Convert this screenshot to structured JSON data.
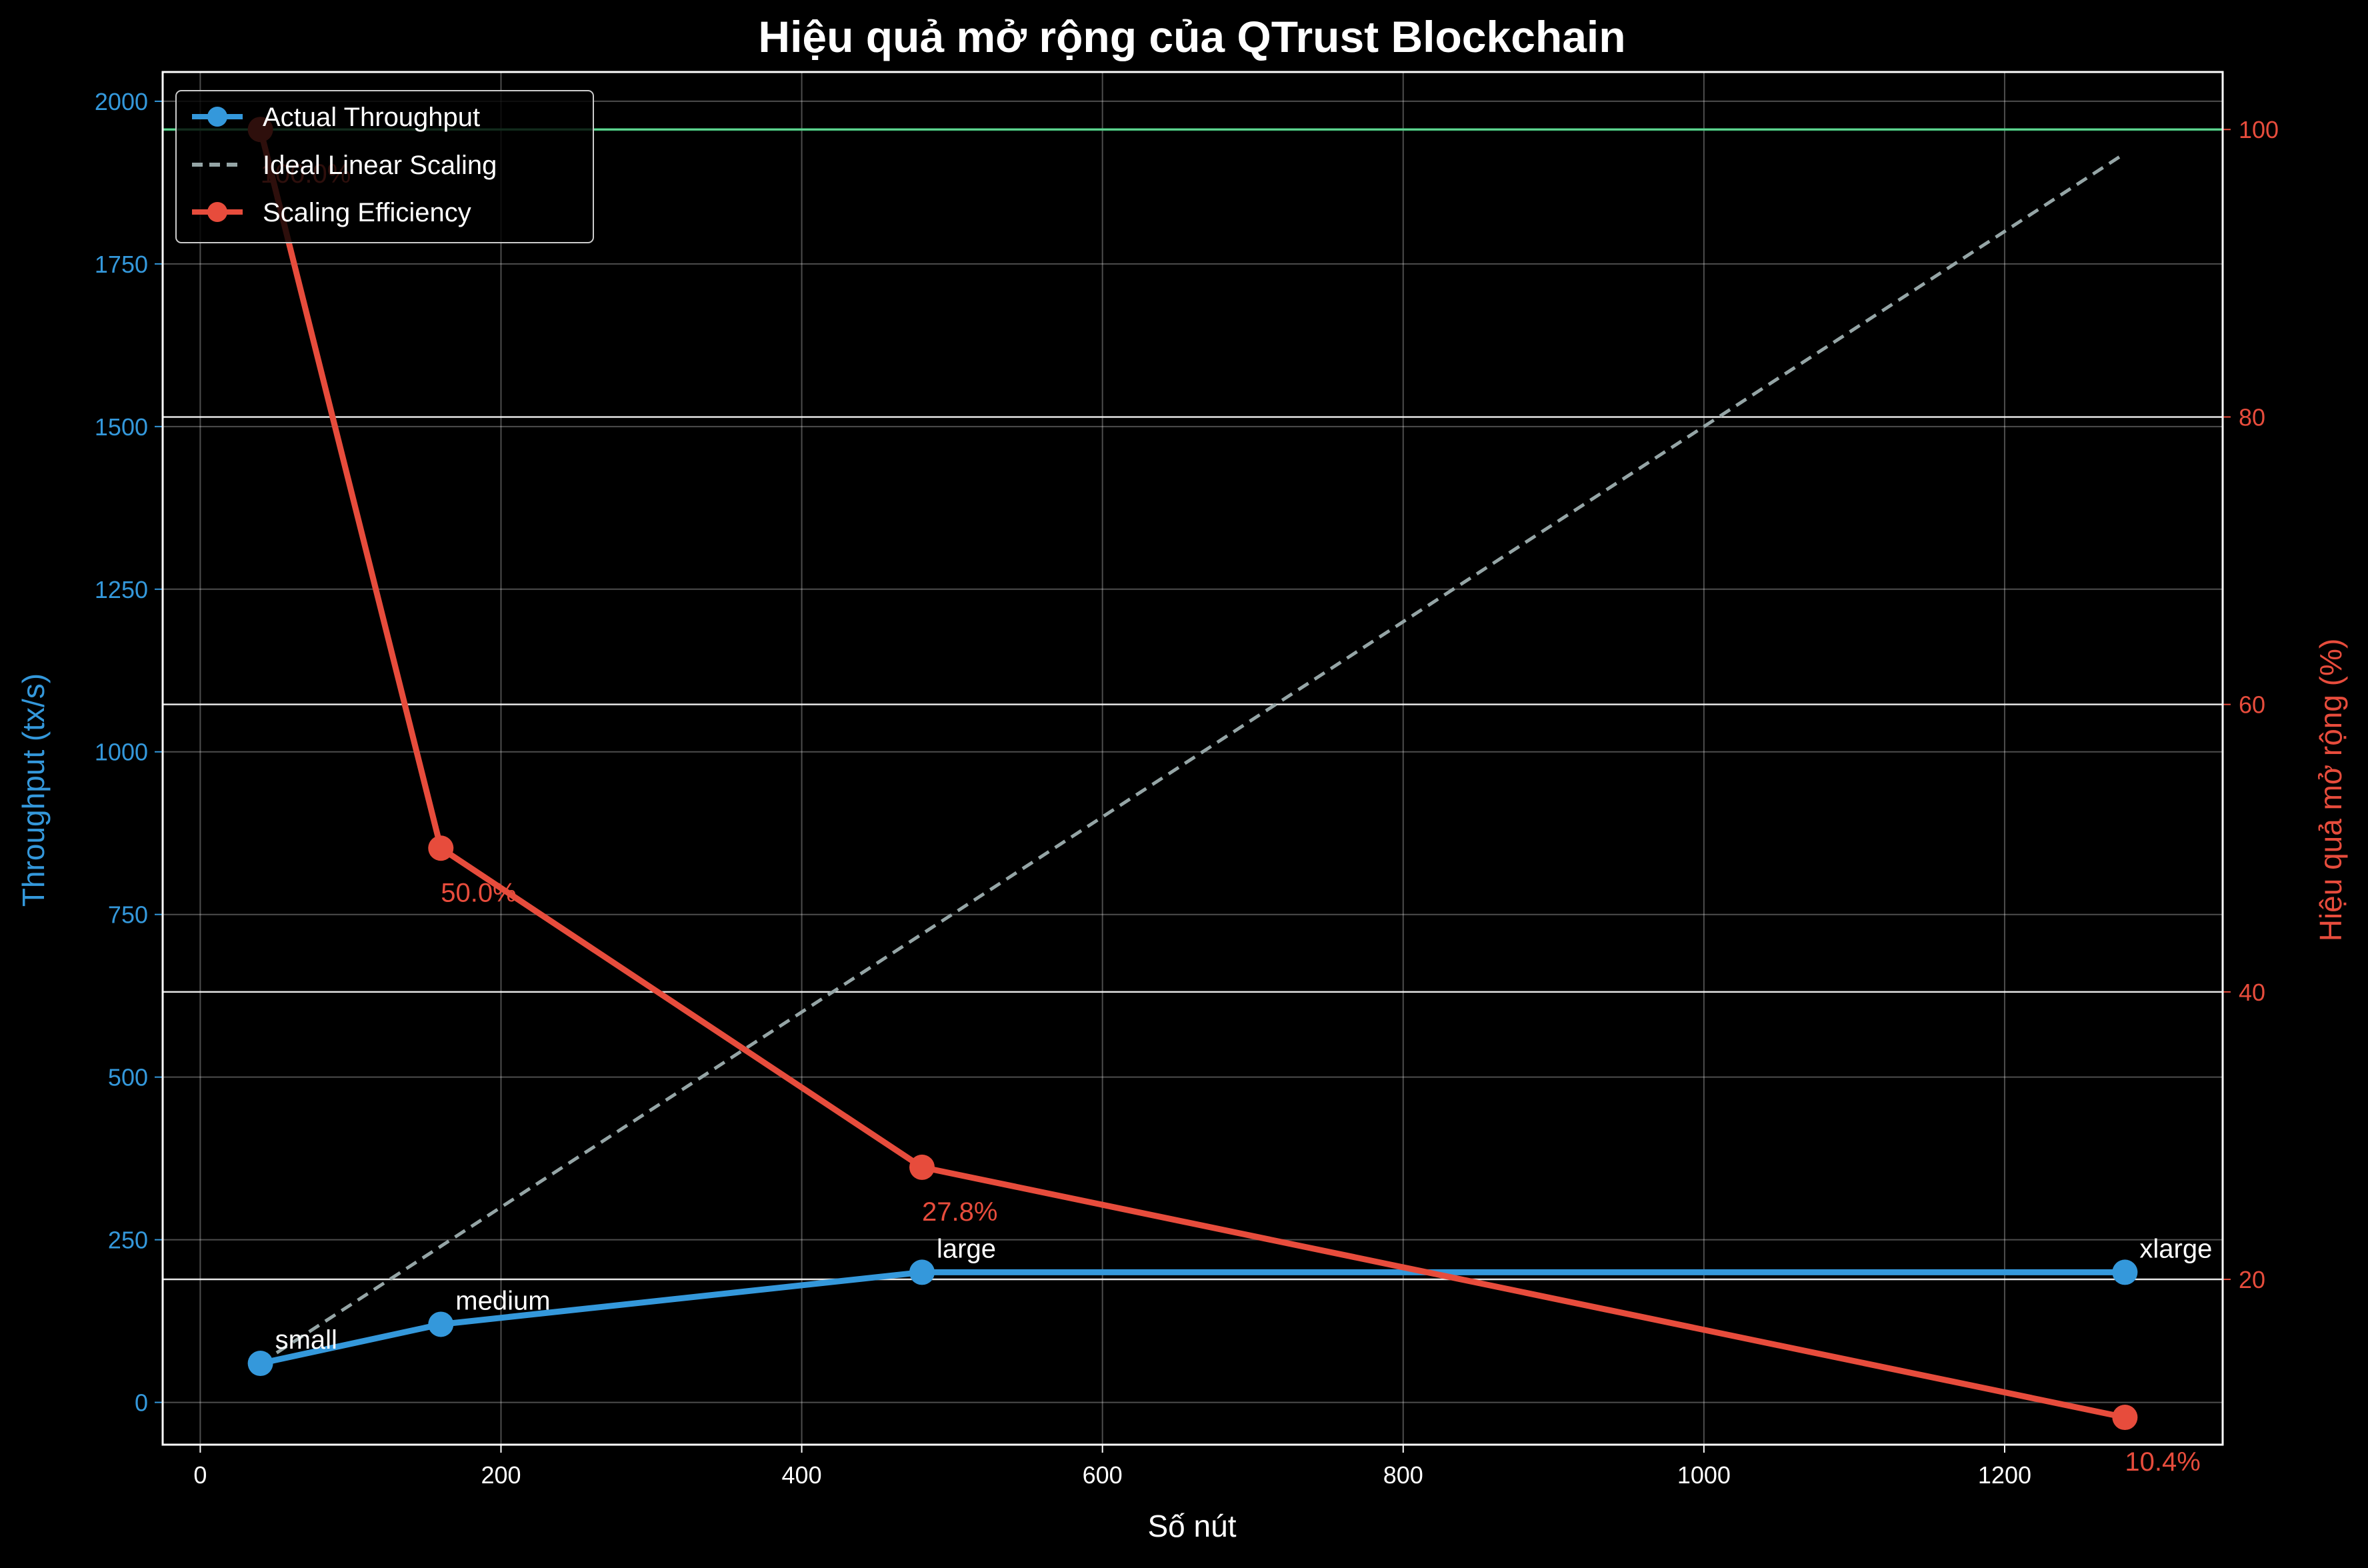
{
  "chart_data": {
    "type": "line",
    "title": "Hiệu quả mở rộng của QTrust Blockchain",
    "xlabel": "Số nút",
    "ylabel_left": "Throughput (tx/s)",
    "ylabel_right": "Hiệu quả mở rộng (%)",
    "xlim": [
      -25,
      1345
    ],
    "ylim_left": [
      -65,
      2045
    ],
    "ylim_right": [
      8.5,
      104
    ],
    "x_ticks": [
      0,
      200,
      400,
      600,
      800,
      1000,
      1200
    ],
    "y_left_ticks": [
      0,
      250,
      500,
      750,
      1000,
      1250,
      1500,
      1750,
      2000
    ],
    "y_right_ticks": [
      20,
      40,
      60,
      80,
      100
    ],
    "grid": true,
    "legend_position": "top-left",
    "colors": {
      "throughput": "#3498db",
      "ideal": "#95a5a6",
      "efficiency": "#e74c3c",
      "reference": "#2ecc71",
      "text": "#ffffff"
    },
    "series": [
      {
        "name": "Actual Throughput",
        "axis": "left",
        "x": [
          40,
          160,
          480,
          1280
        ],
        "y": [
          60,
          120,
          200,
          200
        ],
        "point_labels": [
          "small",
          "medium",
          "large",
          "xlarge"
        ]
      },
      {
        "name": "Ideal Linear Scaling",
        "axis": "left",
        "style": "dashed",
        "x": [
          40,
          1280
        ],
        "y": [
          60,
          1920
        ]
      },
      {
        "name": "Scaling Efficiency",
        "axis": "right",
        "x": [
          40,
          160,
          480,
          1280
        ],
        "y": [
          100.0,
          50.0,
          27.8,
          10.4
        ],
        "point_labels": [
          "100.0%",
          "50.0%",
          "27.8%",
          "10.4%"
        ]
      }
    ],
    "reference_line": {
      "axis": "right",
      "y": 100
    }
  }
}
